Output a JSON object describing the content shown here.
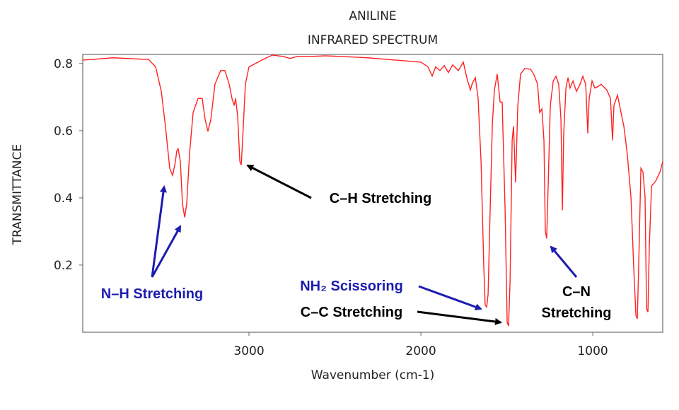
{
  "chart_data": {
    "type": "line",
    "title": "ANILINE",
    "subtitle": "INFRARED SPECTRUM",
    "x_label": "Wavenumber (cm-1)",
    "y_label": "TRANSMITTANCE",
    "color": "#ff2222",
    "xlim": [
      3967,
      593
    ],
    "ylim": [
      0,
      0.827
    ],
    "xticks": [
      3000,
      2000,
      1000
    ],
    "yticks": [
      0.2,
      0.4,
      0.6,
      0.8
    ],
    "x": [
      3967,
      3790,
      3584,
      3543,
      3510,
      3486,
      3461,
      3444,
      3428,
      3420,
      3412,
      3399,
      3387,
      3374,
      3362,
      3346,
      3325,
      3296,
      3272,
      3255,
      3239,
      3222,
      3198,
      3165,
      3140,
      3115,
      3099,
      3086,
      3078,
      3066,
      3053,
      3045,
      3037,
      3021,
      3000,
      2926,
      2864,
      2802,
      2761,
      2720,
      2638,
      2556,
      2473,
      2309,
      2144,
      2000,
      1959,
      1934,
      1914,
      1889,
      1864,
      1840,
      1815,
      1782,
      1753,
      1733,
      1712,
      1700,
      1683,
      1667,
      1650,
      1634,
      1626,
      1617,
      1609,
      1597,
      1584,
      1572,
      1556,
      1539,
      1527,
      1510,
      1498,
      1490,
      1481,
      1469,
      1461,
      1449,
      1436,
      1420,
      1395,
      1362,
      1342,
      1321,
      1309,
      1296,
      1284,
      1276,
      1268,
      1259,
      1247,
      1230,
      1214,
      1198,
      1185,
      1177,
      1169,
      1156,
      1144,
      1132,
      1115,
      1095,
      1074,
      1058,
      1041,
      1029,
      1021,
      1004,
      988,
      971,
      951,
      918,
      897,
      885,
      877,
      856,
      840,
      819,
      799,
      778,
      762,
      749,
      741,
      733,
      720,
      708,
      696,
      687,
      679,
      671,
      658,
      634,
      609,
      593
    ],
    "values": [
      0.81,
      0.817,
      0.812,
      0.79,
      0.717,
      0.613,
      0.488,
      0.467,
      0.508,
      0.54,
      0.546,
      0.508,
      0.383,
      0.342,
      0.383,
      0.529,
      0.654,
      0.696,
      0.696,
      0.633,
      0.598,
      0.633,
      0.738,
      0.779,
      0.779,
      0.738,
      0.696,
      0.675,
      0.696,
      0.644,
      0.508,
      0.498,
      0.571,
      0.738,
      0.79,
      0.81,
      0.825,
      0.821,
      0.815,
      0.821,
      0.821,
      0.823,
      0.821,
      0.817,
      0.81,
      0.804,
      0.79,
      0.763,
      0.79,
      0.779,
      0.794,
      0.773,
      0.796,
      0.779,
      0.804,
      0.758,
      0.721,
      0.742,
      0.758,
      0.696,
      0.508,
      0.196,
      0.081,
      0.075,
      0.113,
      0.363,
      0.623,
      0.721,
      0.769,
      0.685,
      0.685,
      0.363,
      0.029,
      0.019,
      0.154,
      0.571,
      0.613,
      0.446,
      0.675,
      0.769,
      0.785,
      0.783,
      0.767,
      0.738,
      0.654,
      0.665,
      0.571,
      0.3,
      0.279,
      0.446,
      0.675,
      0.748,
      0.762,
      0.738,
      0.633,
      0.363,
      0.592,
      0.727,
      0.758,
      0.727,
      0.748,
      0.717,
      0.738,
      0.762,
      0.738,
      0.592,
      0.696,
      0.748,
      0.727,
      0.731,
      0.738,
      0.721,
      0.696,
      0.571,
      0.675,
      0.706,
      0.665,
      0.613,
      0.529,
      0.404,
      0.196,
      0.05,
      0.04,
      0.196,
      0.488,
      0.477,
      0.404,
      0.071,
      0.06,
      0.258,
      0.435,
      0.45,
      0.477,
      0.508
    ],
    "annotations": [
      {
        "lines": [
          "N–H Stretching"
        ],
        "color": "#1c1cb0"
      },
      {
        "lines": [
          "C–H Stretching"
        ],
        "color": "#000000"
      },
      {
        "lines": [
          "NH₂ Scissoring"
        ],
        "color": "#1c1cb0"
      },
      {
        "lines": [
          "C–C Stretching"
        ],
        "color": "#000000"
      },
      {
        "lines": [
          "C–N",
          "Stretching"
        ],
        "color": "#000000"
      }
    ]
  }
}
